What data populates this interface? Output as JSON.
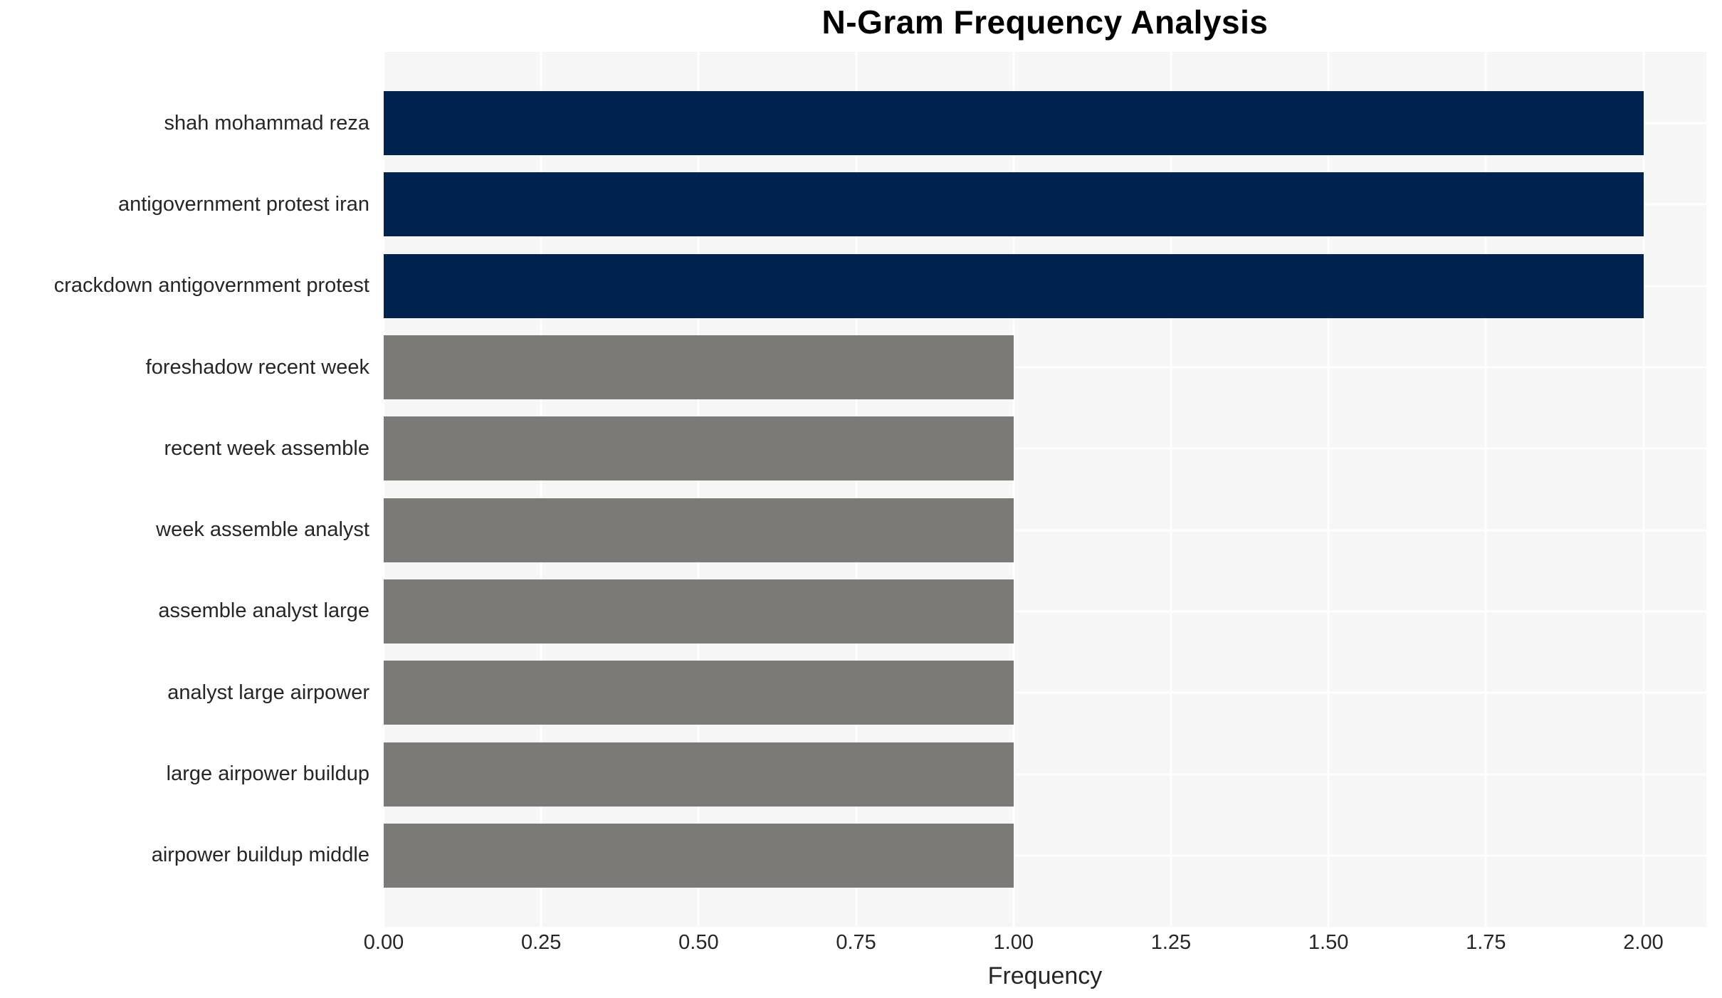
{
  "chart_data": {
    "type": "bar",
    "orientation": "horizontal",
    "title": "N-Gram Frequency Analysis",
    "xlabel": "Frequency",
    "ylabel": "",
    "categories": [
      "shah mohammad reza",
      "antigovernment protest iran",
      "crackdown antigovernment protest",
      "foreshadow recent week",
      "recent week assemble",
      "week assemble analyst",
      "assemble analyst large",
      "analyst large airpower",
      "large airpower buildup",
      "airpower buildup middle"
    ],
    "values": [
      2,
      2,
      2,
      1,
      1,
      1,
      1,
      1,
      1,
      1
    ],
    "bar_colors": [
      "#00224e",
      "#00224e",
      "#00224e",
      "#7b7a77",
      "#7b7a77",
      "#7b7a77",
      "#7b7a77",
      "#7b7a77",
      "#7b7a77",
      "#7b7a77"
    ],
    "xlim": [
      0,
      2.1
    ],
    "xticks": [
      0,
      0.25,
      0.5,
      0.75,
      1,
      1.25,
      1.5,
      1.75,
      2
    ],
    "xtick_labels": [
      "0.00",
      "0.25",
      "0.50",
      "0.75",
      "1.00",
      "1.25",
      "1.50",
      "1.75",
      "2.00"
    ],
    "grid": true,
    "legend": false,
    "colors": {
      "bar_high": "#00224e",
      "bar_low": "#7b7a77",
      "plot_background": "#f7f6f6",
      "grid_line": "#ffffff",
      "tick_text": "#262626",
      "title_text": "#000000"
    }
  }
}
